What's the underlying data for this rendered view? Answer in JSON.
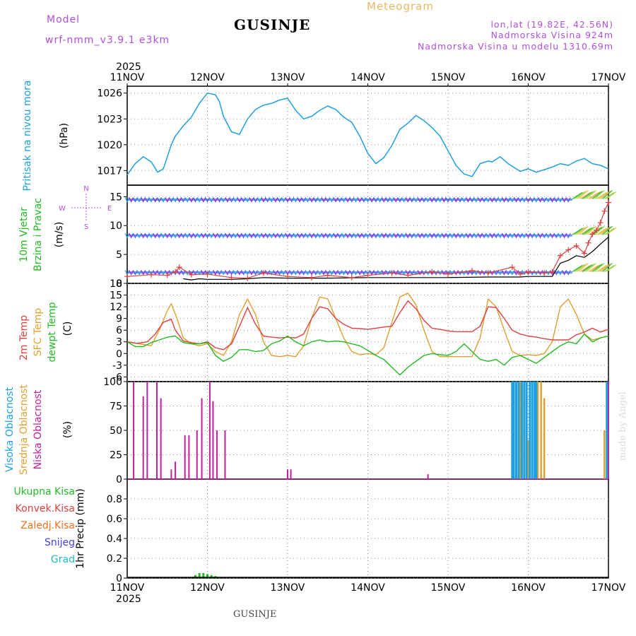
{
  "header": {
    "model_label": "Model",
    "model_name": "wrf-nmm_v3.9.1  e3km",
    "title": "GUSINJE",
    "meteogram": "Meteogram",
    "lonlat": "lon,lat (19.82E, 42.56N)",
    "elevation": "Nadmorska Visina 924m",
    "model_elevation": "Nadmorska Visina u modelu 1310.69m"
  },
  "footer": {
    "station": "GUSINJE",
    "made_by": "made by Angel"
  },
  "colors": {
    "pressure": "#1ea0e0",
    "wind_label": "#22bb22",
    "wind_speed": "#e04040",
    "wind_gust": "#000000",
    "wind_barb_calm": "#8a2be2",
    "temp2m": "#e04040",
    "sfc_temp": "#e0a030",
    "dewpoint": "#22bb22",
    "cloud_high": "#1ea0e0",
    "cloud_mid": "#e0a030",
    "cloud_low": "#c020a0",
    "precip_total": "#22bb22",
    "precip_conv": "#e04040",
    "precip_frz": "#f07020",
    "precip_snow": "#4040e0",
    "precip_grad": "#20c0c0",
    "model_label": "#b050e0",
    "meteogram": "#e8b860"
  },
  "chart_data": [
    {
      "type": "line",
      "panel": "pressure",
      "xticks": [
        "11NOV",
        "12NOV",
        "13NOV",
        "14NOV",
        "15NOV",
        "16NOV",
        "17NOV"
      ],
      "year": "2025",
      "ylabel": "Pritisak na nivou mora",
      "unit": "(hPa)",
      "ylim": [
        1015.3,
        1026.8
      ],
      "yticks": [
        1017,
        1020,
        1023,
        1026
      ],
      "grid": true,
      "series": [
        {
          "name": "Pritisak na nivou mora",
          "x": [
            0,
            0.1,
            0.2,
            0.3,
            0.38,
            0.45,
            0.5,
            0.55,
            0.6,
            0.7,
            0.8,
            0.9,
            1.0,
            1.1,
            1.15,
            1.2,
            1.3,
            1.4,
            1.5,
            1.6,
            1.7,
            1.8,
            1.9,
            2.0,
            2.1,
            2.2,
            2.3,
            2.4,
            2.5,
            2.6,
            2.7,
            2.8,
            2.9,
            3.0,
            3.1,
            3.2,
            3.3,
            3.4,
            3.5,
            3.6,
            3.7,
            3.8,
            3.9,
            4.0,
            4.1,
            4.2,
            4.3,
            4.4,
            4.5,
            4.55,
            4.65,
            4.75,
            4.9,
            5.0,
            5.1,
            5.2,
            5.3,
            5.4,
            5.5,
            5.6,
            5.7,
            5.8,
            5.9,
            6.0
          ],
          "y": [
            1016.5,
            1017.8,
            1018.6,
            1018.0,
            1016.8,
            1017.2,
            1018.6,
            1020.0,
            1021.0,
            1022.2,
            1023.2,
            1024.8,
            1026.0,
            1025.8,
            1025.0,
            1023.3,
            1021.5,
            1021.2,
            1023.0,
            1024.1,
            1024.6,
            1024.8,
            1025.2,
            1025.4,
            1024.0,
            1023.0,
            1023.3,
            1024.0,
            1024.5,
            1024.1,
            1023.2,
            1022.6,
            1021.0,
            1019.0,
            1017.8,
            1018.5,
            1019.9,
            1021.8,
            1022.5,
            1023.4,
            1022.8,
            1022.0,
            1021.0,
            1019.3,
            1017.6,
            1016.6,
            1016.3,
            1017.8,
            1018.1,
            1018.0,
            1018.6,
            1017.8,
            1016.9,
            1017.2,
            1016.8,
            1017.1,
            1017.4,
            1017.8,
            1017.6,
            1018.1,
            1018.4,
            1017.8,
            1017.6,
            1017.2
          ]
        }
      ]
    },
    {
      "type": "line",
      "panel": "wind",
      "ylabel": "10m Vjetar Brzina i Pravac",
      "unit": "(m/s)",
      "ylim": [
        0,
        17
      ],
      "yticks": [
        0,
        5,
        10,
        15
      ],
      "compass": {
        "n": "N",
        "s": "S",
        "w": "W",
        "e": "E"
      },
      "barb_rows": [
        1.9,
        8.3,
        14.5
      ],
      "series": [
        {
          "name": "Brzina",
          "x": [
            0,
            0.3,
            0.5,
            0.6,
            0.65,
            0.8,
            1.0,
            1.3,
            1.5,
            1.7,
            2.0,
            2.3,
            2.5,
            2.8,
            3.0,
            3.3,
            3.5,
            3.8,
            4.0,
            4.3,
            4.5,
            4.8,
            4.9,
            5.0,
            5.2,
            5.3,
            5.4,
            5.5,
            5.6,
            5.7,
            5.75,
            5.8,
            5.85,
            5.9,
            5.95,
            6.0
          ],
          "y": [
            1.2,
            1.5,
            1.4,
            2.0,
            2.8,
            1.5,
            1.6,
            1.0,
            0.9,
            1.8,
            1.2,
            1.0,
            1.4,
            1.0,
            1.4,
            1.8,
            1.4,
            2.0,
            1.6,
            2.2,
            1.8,
            2.8,
            1.6,
            2.0,
            1.8,
            2.0,
            4.8,
            5.8,
            6.5,
            5.2,
            7.0,
            8.5,
            9.2,
            10.5,
            12.5,
            14.0
          ]
        },
        {
          "name": "Udar",
          "x": [
            0.7,
            0.8,
            0.9,
            1.0,
            1.3,
            1.5,
            1.7,
            2.0,
            2.5,
            3.0,
            3.5,
            4.0,
            4.5,
            4.9,
            5.0,
            5.2,
            5.3,
            5.4,
            5.5,
            5.6,
            5.7,
            5.8,
            5.9,
            6.0
          ],
          "y": [
            0.8,
            0.6,
            0.8,
            0.7,
            0.7,
            0.8,
            1.0,
            0.9,
            0.9,
            1.0,
            1.0,
            1.0,
            1.1,
            1.1,
            1.2,
            1.2,
            1.2,
            3.5,
            4.0,
            4.8,
            4.5,
            5.5,
            6.8,
            8.0
          ]
        }
      ]
    },
    {
      "type": "line",
      "panel": "temperature",
      "ylabels": [
        "2m Temp",
        "SFC Temp",
        "dewpt Temp"
      ],
      "unit": "(C)",
      "ylim": [
        -7.2,
        18
      ],
      "yticks": [
        -6,
        -3,
        0,
        3,
        6,
        9,
        12,
        15,
        18
      ],
      "series": [
        {
          "name": "2m Temp",
          "x": [
            0,
            0.12,
            0.25,
            0.35,
            0.45,
            0.55,
            0.6,
            0.7,
            0.8,
            0.9,
            1.0,
            1.1,
            1.2,
            1.3,
            1.4,
            1.5,
            1.6,
            1.7,
            1.8,
            1.9,
            2.0,
            2.1,
            2.2,
            2.3,
            2.4,
            2.5,
            2.6,
            2.7,
            2.8,
            2.9,
            3.0,
            3.1,
            3.2,
            3.3,
            3.4,
            3.5,
            3.6,
            3.7,
            3.8,
            3.9,
            4.0,
            4.1,
            4.2,
            4.3,
            4.4,
            4.5,
            4.6,
            4.7,
            4.8,
            4.9,
            5.0,
            5.1,
            5.2,
            5.3,
            5.4,
            5.5,
            5.6,
            5.7,
            5.8,
            5.9,
            6.0
          ],
          "y": [
            3.0,
            2.6,
            3.0,
            5.0,
            8.0,
            8.8,
            6.0,
            3.2,
            2.8,
            2.5,
            3.0,
            1.5,
            1.0,
            2.5,
            7.0,
            11.8,
            7.5,
            4.5,
            4.2,
            4.0,
            4.2,
            4.0,
            5.0,
            9.0,
            12.0,
            11.5,
            9.0,
            7.5,
            6.5,
            6.4,
            6.2,
            6.5,
            6.8,
            7.0,
            10.5,
            13.5,
            11.5,
            8.5,
            6.5,
            6.2,
            5.8,
            5.6,
            5.6,
            5.6,
            7.0,
            12.0,
            11.8,
            9.0,
            6.0,
            5.0,
            4.5,
            4.2,
            3.8,
            3.5,
            3.5,
            3.5,
            4.8,
            5.5,
            6.5,
            5.5,
            6.2
          ]
        },
        {
          "name": "SFC Temp",
          "x": [
            0,
            0.15,
            0.3,
            0.4,
            0.5,
            0.55,
            0.62,
            0.7,
            0.8,
            0.9,
            1.0,
            1.1,
            1.2,
            1.3,
            1.4,
            1.5,
            1.6,
            1.7,
            1.8,
            1.9,
            2.0,
            2.1,
            2.2,
            2.3,
            2.4,
            2.5,
            2.6,
            2.7,
            2.8,
            2.9,
            3.0,
            3.1,
            3.2,
            3.3,
            3.4,
            3.5,
            3.6,
            3.7,
            3.8,
            3.9,
            4.0,
            4.1,
            4.2,
            4.3,
            4.4,
            4.5,
            4.6,
            4.7,
            4.8,
            4.9,
            5.0,
            5.1,
            5.2,
            5.3,
            5.4,
            5.5,
            5.6,
            5.7,
            5.8,
            5.9,
            6.0
          ],
          "y": [
            3.0,
            2.5,
            2.0,
            6.0,
            11.0,
            12.8,
            9.0,
            4.0,
            2.5,
            2.0,
            2.5,
            0.5,
            -0.5,
            3.0,
            10.0,
            14.0,
            10.0,
            3.0,
            -0.5,
            -0.8,
            -0.5,
            -0.8,
            2.0,
            9.0,
            14.5,
            14.0,
            9.0,
            4.0,
            0.5,
            -0.3,
            0.0,
            -0.3,
            1.5,
            8.0,
            14.5,
            15.5,
            12.5,
            6.0,
            0.5,
            -0.8,
            -0.8,
            -0.8,
            -0.8,
            -0.8,
            4.0,
            14.0,
            12.0,
            6.0,
            0.5,
            -0.5,
            -0.3,
            -0.5,
            0.0,
            3.0,
            12.0,
            14.0,
            10.0,
            5.0,
            3.5,
            4.0,
            4.5
          ]
        },
        {
          "name": "dewpt Temp",
          "x": [
            0,
            0.1,
            0.2,
            0.3,
            0.4,
            0.5,
            0.6,
            0.7,
            0.8,
            0.9,
            1.0,
            1.1,
            1.2,
            1.3,
            1.4,
            1.5,
            1.6,
            1.7,
            1.8,
            1.9,
            2.0,
            2.1,
            2.2,
            2.3,
            2.4,
            2.5,
            2.6,
            2.7,
            2.8,
            2.9,
            3.0,
            3.1,
            3.2,
            3.3,
            3.4,
            3.5,
            3.6,
            3.7,
            3.8,
            3.9,
            4.0,
            4.1,
            4.2,
            4.3,
            4.4,
            4.5,
            4.6,
            4.7,
            4.8,
            4.9,
            5.0,
            5.1,
            5.2,
            5.3,
            5.4,
            5.5,
            5.6,
            5.7,
            5.8,
            5.9,
            6.0
          ],
          "y": [
            3.0,
            1.8,
            1.8,
            2.8,
            3.5,
            4.2,
            4.5,
            2.8,
            2.5,
            2.5,
            2.8,
            -0.5,
            -2.0,
            -1.0,
            1.0,
            1.0,
            0.5,
            0.8,
            2.5,
            3.2,
            4.5,
            3.0,
            2.0,
            3.0,
            3.5,
            3.0,
            3.2,
            3.0,
            2.5,
            2.0,
            0.8,
            -0.5,
            -1.5,
            -3.5,
            -5.5,
            -3.5,
            -2.0,
            -0.5,
            0.0,
            -0.3,
            -0.5,
            0.5,
            2.5,
            0.5,
            -1.5,
            -2.0,
            -1.5,
            -3.0,
            -1.0,
            -0.5,
            -1.5,
            -2.5,
            -1.0,
            0.5,
            2.0,
            3.0,
            2.5,
            5.0,
            3.0,
            4.0,
            4.5
          ]
        }
      ]
    },
    {
      "type": "bar",
      "panel": "clouds",
      "ylabels": [
        "Visoka Oblacnost",
        "Srednja Oblacnost",
        "Niska Oblacnost"
      ],
      "unit": "(%)",
      "ylim": [
        0,
        100
      ],
      "yticks": [
        0,
        25,
        50,
        75,
        100
      ],
      "series": [
        {
          "name": "Niska Oblacnost",
          "x": [
            0.08,
            0.2,
            0.25,
            0.37,
            0.42,
            0.55,
            0.6,
            0.72,
            0.77,
            0.87,
            0.93,
            1.03,
            1.07,
            1.12,
            1.22,
            1.27,
            2.0,
            2.04,
            3.75,
            6.0
          ],
          "y": [
            100,
            85,
            100,
            100,
            83,
            10,
            18,
            45,
            45,
            50,
            83,
            100,
            80,
            50,
            50,
            0,
            10,
            10,
            5,
            100
          ]
        },
        {
          "name": "Srednja Oblacnost",
          "x": [
            4.85,
            4.9,
            5.0,
            5.05,
            5.12,
            5.16,
            5.2,
            5.95
          ],
          "y": [
            100,
            100,
            40,
            100,
            100,
            100,
            83,
            50
          ]
        },
        {
          "name": "Visoka Oblacnost",
          "x": [
            4.8,
            4.82,
            4.85,
            4.88,
            4.92,
            4.95,
            4.98,
            5.02,
            5.05,
            5.08,
            5.1,
            5.98
          ],
          "y": [
            100,
            100,
            100,
            100,
            100,
            100,
            100,
            100,
            100,
            100,
            100,
            100
          ]
        }
      ]
    },
    {
      "type": "bar",
      "panel": "precipitation",
      "ylabel": "1hr Precip",
      "unit": "(mm)",
      "ylim": [
        0,
        1.0
      ],
      "yticks": [
        0,
        0.2,
        0.4,
        0.6,
        0.8
      ],
      "legend": [
        "Ukupna Kisa",
        "Konvek.Kisa",
        "Zaledj.Kisa",
        "Snijeg",
        "Grad"
      ],
      "series": [
        {
          "name": "Ukupna Kisa",
          "x": [
            0.1,
            0.2,
            0.3,
            0.85,
            0.9,
            0.95,
            1.0,
            1.05,
            1.1,
            1.15
          ],
          "y": [
            0.01,
            0.01,
            0.01,
            0.03,
            0.05,
            0.05,
            0.04,
            0.03,
            0.02,
            0.01
          ]
        }
      ]
    }
  ]
}
